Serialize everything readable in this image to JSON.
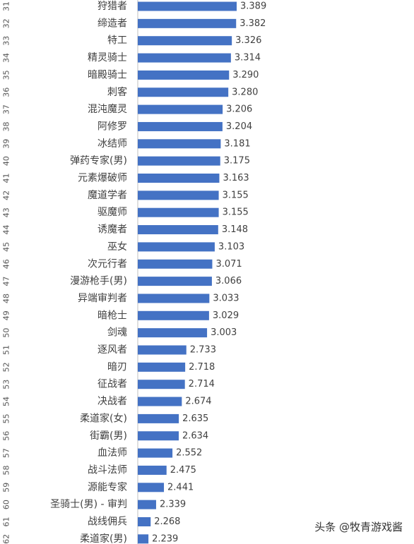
{
  "watermark": "头条 @牧青游戏酱",
  "chart_data": {
    "type": "bar",
    "orientation": "horizontal",
    "bar_color": "#4472c4",
    "xlim": [
      0,
      3.6
    ],
    "grid": false,
    "legend": "none",
    "rows": [
      {
        "rank": "31",
        "category": "狩猎者",
        "value": 3.389,
        "label": "3.389"
      },
      {
        "rank": "32",
        "category": "缔造者",
        "value": 3.382,
        "label": "3.382"
      },
      {
        "rank": "33",
        "category": "特工",
        "value": 3.326,
        "label": "3.326"
      },
      {
        "rank": "34",
        "category": "精灵骑士",
        "value": 3.314,
        "label": "3.314"
      },
      {
        "rank": "35",
        "category": "暗殿骑士",
        "value": 3.29,
        "label": "3.290"
      },
      {
        "rank": "36",
        "category": "刺客",
        "value": 3.28,
        "label": "3.280"
      },
      {
        "rank": "37",
        "category": "混沌魔灵",
        "value": 3.206,
        "label": "3.206"
      },
      {
        "rank": "38",
        "category": "阿修罗",
        "value": 3.204,
        "label": "3.204"
      },
      {
        "rank": "39",
        "category": "冰结师",
        "value": 3.181,
        "label": "3.181"
      },
      {
        "rank": "40",
        "category": "弹药专家(男)",
        "value": 3.175,
        "label": "3.175"
      },
      {
        "rank": "41",
        "category": "元素爆破师",
        "value": 3.163,
        "label": "3.163"
      },
      {
        "rank": "42",
        "category": "魔道学者",
        "value": 3.155,
        "label": "3.155"
      },
      {
        "rank": "43",
        "category": "驱魔师",
        "value": 3.155,
        "label": "3.155"
      },
      {
        "rank": "44",
        "category": "诱魔者",
        "value": 3.148,
        "label": "3.148"
      },
      {
        "rank": "45",
        "category": "巫女",
        "value": 3.103,
        "label": "3.103"
      },
      {
        "rank": "46",
        "category": "次元行者",
        "value": 3.071,
        "label": "3.071"
      },
      {
        "rank": "47",
        "category": "漫游枪手(男)",
        "value": 3.066,
        "label": "3.066"
      },
      {
        "rank": "48",
        "category": "异端审判者",
        "value": 3.033,
        "label": "3.033"
      },
      {
        "rank": "49",
        "category": "暗枪士",
        "value": 3.029,
        "label": "3.029"
      },
      {
        "rank": "50",
        "category": "剑魂",
        "value": 3.003,
        "label": "3.003"
      },
      {
        "rank": "51",
        "category": "逐风者",
        "value": 2.733,
        "label": "2.733"
      },
      {
        "rank": "52",
        "category": "暗刃",
        "value": 2.718,
        "label": "2.718"
      },
      {
        "rank": "53",
        "category": "征战者",
        "value": 2.714,
        "label": "2.714"
      },
      {
        "rank": "54",
        "category": "决战者",
        "value": 2.674,
        "label": "2.674"
      },
      {
        "rank": "55",
        "category": "柔道家(女)",
        "value": 2.635,
        "label": "2.635"
      },
      {
        "rank": "56",
        "category": "街霸(男)",
        "value": 2.634,
        "label": "2.634"
      },
      {
        "rank": "57",
        "category": "血法师",
        "value": 2.552,
        "label": "2.552"
      },
      {
        "rank": "58",
        "category": "战斗法师",
        "value": 2.475,
        "label": "2.475"
      },
      {
        "rank": "59",
        "category": "源能专家",
        "value": 2.441,
        "label": "2.441"
      },
      {
        "rank": "60",
        "category": "圣骑士(男) - 审判",
        "value": 2.339,
        "label": "2.339"
      },
      {
        "rank": "61",
        "category": "战线佣兵",
        "value": 2.268,
        "label": "2.268"
      },
      {
        "rank": "62",
        "category": "柔道家(男)",
        "value": 2.239,
        "label": "2.239"
      }
    ]
  }
}
